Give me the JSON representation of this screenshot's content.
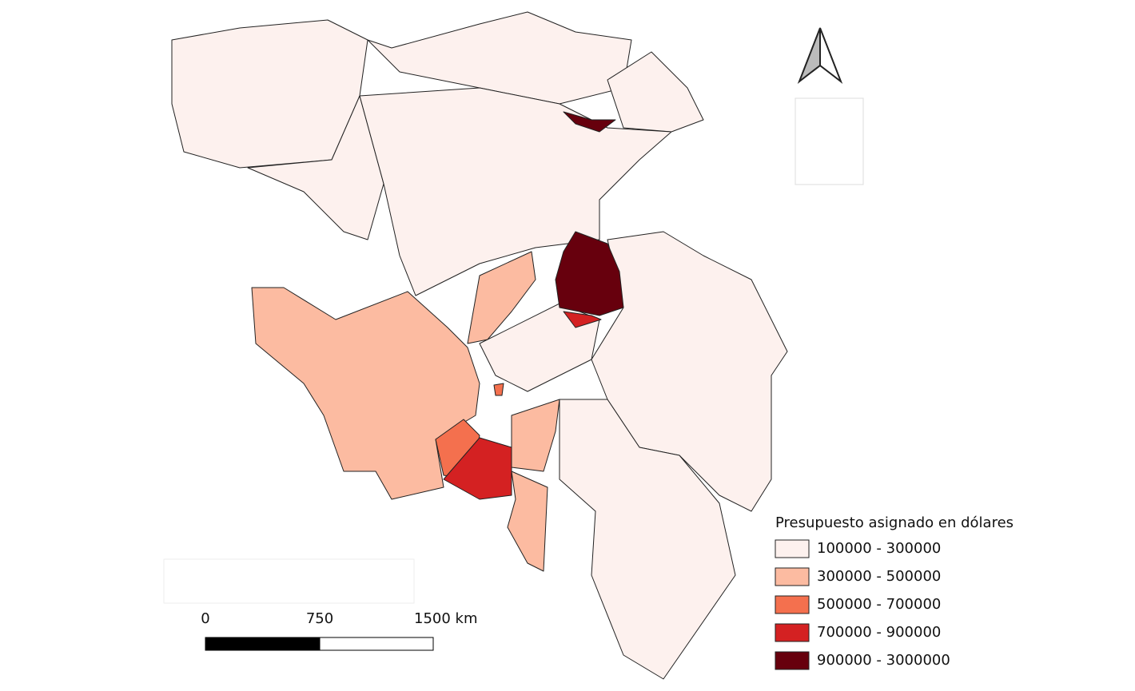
{
  "legend": {
    "title": "Presupuesto asignado en dólares",
    "items": [
      {
        "label": "100000 - 300000",
        "color": "#fdf1ee"
      },
      {
        "label": "300000 - 500000",
        "color": "#fcbba1"
      },
      {
        "label": "500000 - 700000",
        "color": "#f4704e"
      },
      {
        "label": "700000 - 900000",
        "color": "#d42122"
      },
      {
        "label": "900000 - 3000000",
        "color": "#67000d"
      }
    ]
  },
  "scale_bar": {
    "labels": [
      "0",
      "750",
      "1500 km"
    ]
  }
}
